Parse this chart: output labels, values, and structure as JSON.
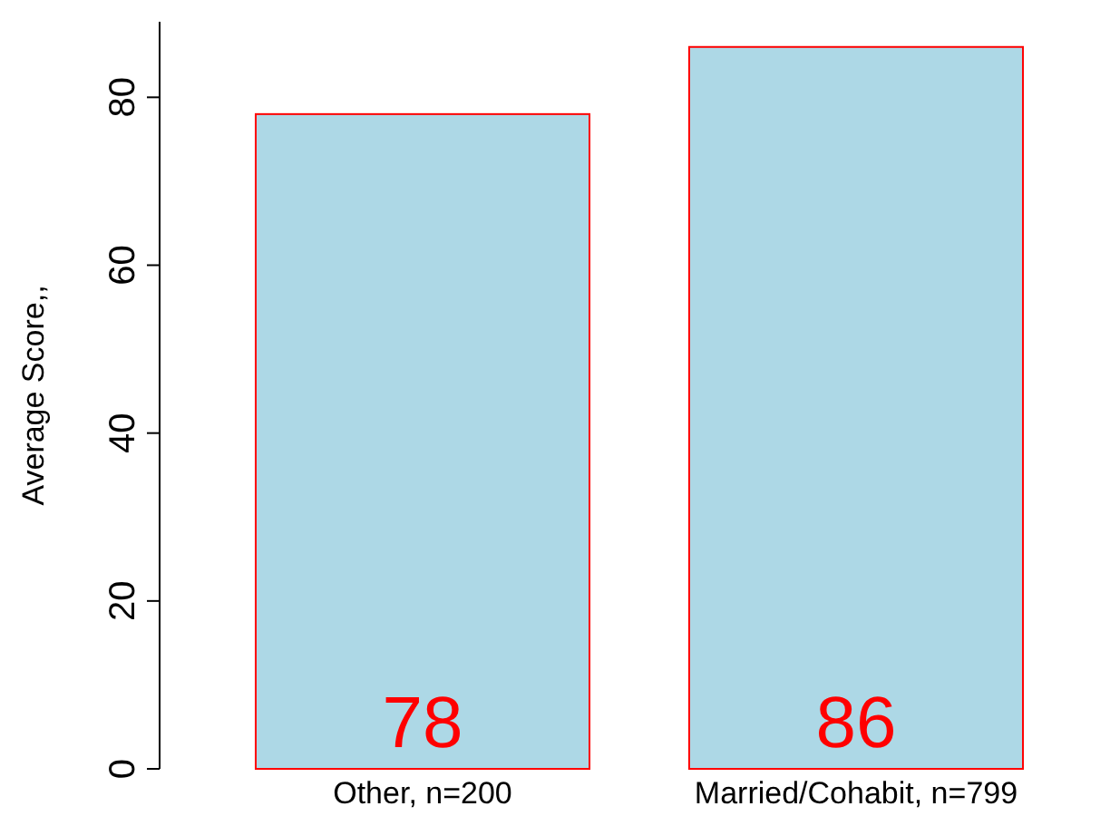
{
  "chart_data": {
    "type": "bar",
    "ylabel": "Average Score,,",
    "categories": [
      "Other, n=200",
      "Married/Cohabit, n=799"
    ],
    "values": [
      78,
      86
    ],
    "color": "#add8e6",
    "ylim": [
      0,
      89
    ],
    "yticks": [
      0,
      20,
      40,
      60,
      80
    ],
    "data_labels": true,
    "grid": false
  }
}
